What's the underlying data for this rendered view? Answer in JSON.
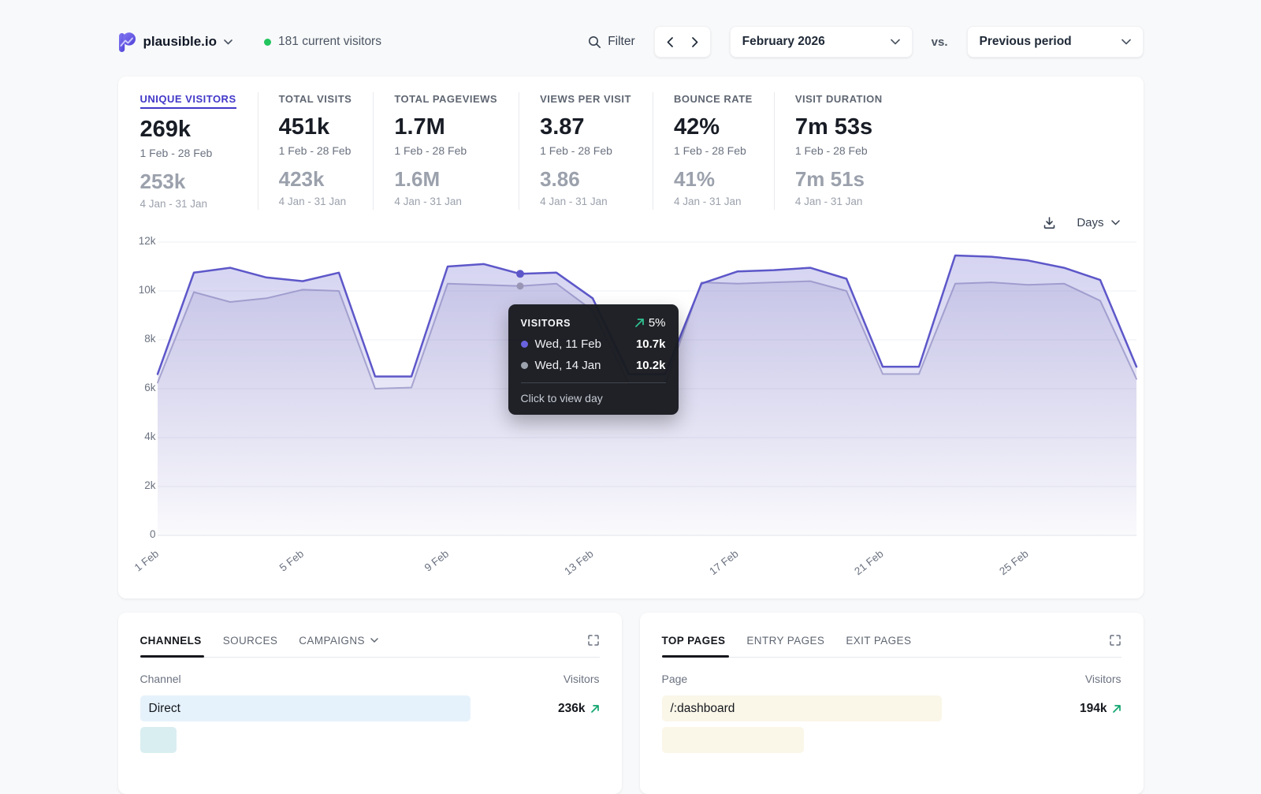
{
  "colors": {
    "accent": "#5d57c9",
    "previous_period": "#b4b2d0",
    "previous_dot": "#9996b5",
    "green": "#10a56e",
    "live_dot": "#22c55e",
    "active_metric": "#4238c8"
  },
  "header": {
    "site": "plausible.io",
    "current_visitors": "181 current visitors",
    "filter_label": "Filter",
    "period_selector": "February 2026",
    "vs_label": "vs.",
    "comparison_selector": "Previous period"
  },
  "stats": {
    "items": [
      {
        "label": "UNIQUE VISITORS",
        "value": "269k",
        "period": "1 Feb - 28 Feb",
        "prev_value": "253k",
        "prev_period": "4 Jan - 31 Jan"
      },
      {
        "label": "TOTAL VISITS",
        "value": "451k",
        "period": "1 Feb - 28 Feb",
        "prev_value": "423k",
        "prev_period": "4 Jan - 31 Jan"
      },
      {
        "label": "TOTAL PAGEVIEWS",
        "value": "1.7M",
        "period": "1 Feb - 28 Feb",
        "prev_value": "1.6M",
        "prev_period": "4 Jan - 31 Jan"
      },
      {
        "label": "VIEWS PER VISIT",
        "value": "3.87",
        "period": "1 Feb - 28 Feb",
        "prev_value": "3.86",
        "prev_period": "4 Jan - 31 Jan"
      },
      {
        "label": "BOUNCE RATE",
        "value": "42%",
        "period": "1 Feb - 28 Feb",
        "prev_value": "41%",
        "prev_period": "4 Jan - 31 Jan"
      },
      {
        "label": "VISIT DURATION",
        "value": "7m 53s",
        "period": "1 Feb - 28 Feb",
        "prev_value": "7m 51s",
        "prev_period": "4 Jan - 31 Jan"
      }
    ]
  },
  "chart_controls": {
    "interval_label": "Days"
  },
  "chart_data": {
    "type": "area",
    "title": "Visitors",
    "x": [
      "1 Feb",
      "2 Feb",
      "3 Feb",
      "4 Feb",
      "5 Feb",
      "6 Feb",
      "7 Feb",
      "8 Feb",
      "9 Feb",
      "10 Feb",
      "11 Feb",
      "12 Feb",
      "13 Feb",
      "14 Feb",
      "15 Feb",
      "16 Feb",
      "17 Feb",
      "18 Feb",
      "19 Feb",
      "20 Feb",
      "21 Feb",
      "22 Feb",
      "23 Feb",
      "24 Feb",
      "25 Feb",
      "26 Feb",
      "27 Feb",
      "28 Feb"
    ],
    "series": [
      {
        "name": "February 2026",
        "color": "#5d57c9",
        "values": [
          6600,
          10750,
          10950,
          10550,
          10400,
          10750,
          6500,
          6500,
          11000,
          11100,
          10700,
          10750,
          9700,
          6600,
          6600,
          10300,
          10800,
          10850,
          10950,
          10500,
          6900,
          6900,
          11450,
          11400,
          11250,
          10950,
          10450,
          6900
        ]
      },
      {
        "name": "Previous period (4 Jan - 31 Jan)",
        "color": "#b4b2d0",
        "values": [
          6250,
          9950,
          9550,
          9700,
          10050,
          10000,
          6000,
          6050,
          10300,
          10250,
          10200,
          10300,
          9200,
          6200,
          6200,
          10350,
          10300,
          10350,
          10400,
          10000,
          6600,
          6600,
          10300,
          10350,
          10250,
          10300,
          9600,
          6400
        ]
      }
    ],
    "ylim": [
      0,
      12000
    ],
    "yticks": [
      "0",
      "2k",
      "4k",
      "6k",
      "8k",
      "10k",
      "12k"
    ],
    "xticks": [
      "1 Feb",
      "5 Feb",
      "9 Feb",
      "13 Feb",
      "17 Feb",
      "21 Feb",
      "25 Feb"
    ],
    "xtick_days": [
      1,
      5,
      9,
      13,
      17,
      21,
      25
    ],
    "grid": true,
    "legend": false,
    "highlight_index": 10
  },
  "tooltip": {
    "title": "VISITORS",
    "change": "5%",
    "rows": [
      {
        "date": "Wed, 11 Feb",
        "value": "10.7k",
        "dot_color": "#6a63e0"
      },
      {
        "date": "Wed, 14 Jan",
        "value": "10.2k",
        "dot_color": "#9ca3af"
      }
    ],
    "footer": "Click to view day"
  },
  "channels_card": {
    "tabs": [
      {
        "label": "CHANNELS"
      },
      {
        "label": "SOURCES"
      },
      {
        "label": "CAMPAIGNS"
      }
    ],
    "columns": {
      "left": "Channel",
      "right": "Visitors"
    },
    "rows": [
      {
        "name": "Direct",
        "value": "236k",
        "bar_color": "#e6f2fb",
        "bar_width": "72%"
      },
      {
        "name": "",
        "value": "",
        "bar_color": "#d9eef0",
        "bar_width": "8%"
      }
    ]
  },
  "pages_card": {
    "tabs": [
      {
        "label": "TOP PAGES"
      },
      {
        "label": "ENTRY PAGES"
      },
      {
        "label": "EXIT PAGES"
      }
    ],
    "columns": {
      "left": "Page",
      "right": "Visitors"
    },
    "rows": [
      {
        "name": "/:dashboard",
        "value": "194k",
        "bar_color": "#faf6e8",
        "bar_width": "61%"
      },
      {
        "name": "",
        "value": "",
        "bar_color": "#faf6e8",
        "bar_width": "31%"
      }
    ]
  }
}
